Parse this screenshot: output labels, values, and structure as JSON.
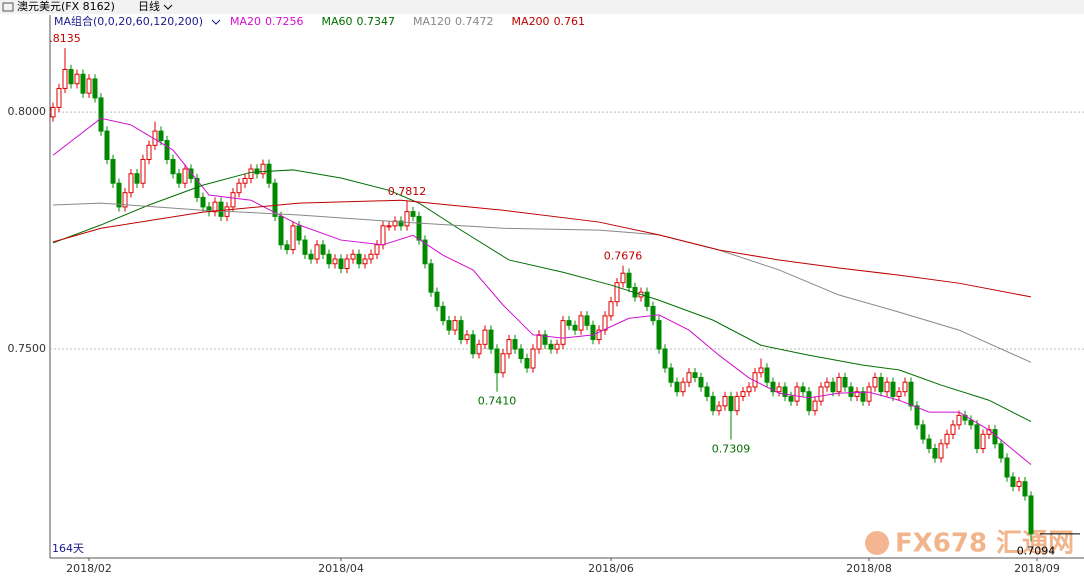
{
  "header": {
    "title": "澳元美元(FX 8162)",
    "period": "日线"
  },
  "footer": {
    "days": "164天",
    "watermark": "FX678 汇通网"
  },
  "chart_data": {
    "type": "candlestick",
    "legend_title": "MA组合(0,0,20,60,120,200)",
    "up_color": "#e00000",
    "down_color": "#008a00",
    "ylim": [
      0.7059,
      0.8205
    ],
    "yticks": [
      {
        "value": 0.8,
        "label": "0.8000"
      },
      {
        "value": 0.75,
        "label": "0.7500"
      }
    ],
    "grid": true,
    "xticks": [
      {
        "value": 6,
        "label": "2018/02"
      },
      {
        "value": 48,
        "label": "2018/04"
      },
      {
        "value": 93,
        "label": "2018/06"
      },
      {
        "value": 136,
        "label": "2018/08"
      },
      {
        "value": 164,
        "label": "2018/09"
      }
    ],
    "open": [
      0.799,
      0.801,
      0.805,
      0.809,
      0.806,
      0.808,
      0.804,
      0.807,
      0.803,
      0.796,
      0.79,
      0.785,
      0.78,
      0.783,
      0.787,
      0.785,
      0.79,
      0.793,
      0.796,
      0.794,
      0.79,
      0.787,
      0.785,
      0.788,
      0.786,
      0.782,
      0.78,
      0.779,
      0.781,
      0.778,
      0.78,
      0.783,
      0.785,
      0.786,
      0.788,
      0.787,
      0.789,
      0.785,
      0.778,
      0.772,
      0.771,
      0.776,
      0.773,
      0.77,
      0.769,
      0.772,
      0.77,
      0.768,
      0.769,
      0.767,
      0.769,
      0.77,
      0.768,
      0.769,
      0.77,
      0.772,
      0.776,
      0.776,
      0.777,
      0.776,
      0.779,
      0.778,
      0.773,
      0.768,
      0.762,
      0.759,
      0.756,
      0.754,
      0.756,
      0.752,
      0.753,
      0.749,
      0.751,
      0.754,
      0.75,
      0.745,
      0.749,
      0.752,
      0.75,
      0.748,
      0.746,
      0.75,
      0.753,
      0.751,
      0.75,
      0.751,
      0.756,
      0.755,
      0.754,
      0.757,
      0.755,
      0.752,
      0.754,
      0.757,
      0.76,
      0.764,
      0.766,
      0.763,
      0.761,
      0.762,
      0.759,
      0.756,
      0.75,
      0.746,
      0.743,
      0.741,
      0.743,
      0.745,
      0.744,
      0.742,
      0.74,
      0.737,
      0.738,
      0.74,
      0.737,
      0.74,
      0.741,
      0.742,
      0.745,
      0.746,
      0.743,
      0.741,
      0.742,
      0.74,
      0.739,
      0.742,
      0.741,
      0.737,
      0.739,
      0.742,
      0.743,
      0.741,
      0.744,
      0.742,
      0.74,
      0.741,
      0.739,
      0.742,
      0.744,
      0.741,
      0.743,
      0.74,
      0.741,
      0.743,
      0.738,
      0.734,
      0.731,
      0.729,
      0.727,
      0.73,
      0.732,
      0.734,
      0.736,
      0.735,
      0.734,
      0.729,
      0.732,
      0.733,
      0.73,
      0.727,
      0.723,
      0.721,
      0.722,
      0.719
    ],
    "high": [
      0.802,
      0.806,
      0.8135,
      0.81,
      0.809,
      0.809,
      0.808,
      0.808,
      0.804,
      0.797,
      0.791,
      0.786,
      0.784,
      0.788,
      0.788,
      0.791,
      0.794,
      0.798,
      0.797,
      0.795,
      0.791,
      0.788,
      0.789,
      0.789,
      0.787,
      0.783,
      0.781,
      0.782,
      0.782,
      0.781,
      0.784,
      0.786,
      0.787,
      0.789,
      0.789,
      0.79,
      0.79,
      0.786,
      0.779,
      0.773,
      0.777,
      0.777,
      0.774,
      0.771,
      0.773,
      0.773,
      0.771,
      0.77,
      0.77,
      0.77,
      0.771,
      0.771,
      0.77,
      0.771,
      0.773,
      0.777,
      0.777,
      0.778,
      0.778,
      0.7812,
      0.78,
      0.779,
      0.774,
      0.769,
      0.763,
      0.76,
      0.757,
      0.757,
      0.757,
      0.754,
      0.754,
      0.752,
      0.755,
      0.755,
      0.751,
      0.75,
      0.753,
      0.753,
      0.751,
      0.749,
      0.751,
      0.754,
      0.754,
      0.752,
      0.752,
      0.757,
      0.757,
      0.756,
      0.758,
      0.758,
      0.756,
      0.755,
      0.758,
      0.761,
      0.765,
      0.7676,
      0.767,
      0.764,
      0.763,
      0.763,
      0.76,
      0.757,
      0.751,
      0.747,
      0.744,
      0.744,
      0.746,
      0.746,
      0.745,
      0.743,
      0.741,
      0.739,
      0.741,
      0.741,
      0.741,
      0.742,
      0.743,
      0.746,
      0.748,
      0.747,
      0.744,
      0.743,
      0.743,
      0.741,
      0.743,
      0.743,
      0.742,
      0.74,
      0.743,
      0.744,
      0.744,
      0.745,
      0.745,
      0.743,
      0.742,
      0.742,
      0.743,
      0.745,
      0.745,
      0.744,
      0.744,
      0.742,
      0.744,
      0.744,
      0.739,
      0.735,
      0.732,
      0.73,
      0.731,
      0.733,
      0.735,
      0.737,
      0.737,
      0.736,
      0.735,
      0.733,
      0.734,
      0.734,
      0.731,
      0.728,
      0.724,
      0.723,
      0.723,
      0.72
    ],
    "low": [
      0.798,
      0.8,
      0.804,
      0.805,
      0.805,
      0.803,
      0.803,
      0.802,
      0.795,
      0.789,
      0.784,
      0.779,
      0.779,
      0.782,
      0.784,
      0.784,
      0.789,
      0.792,
      0.793,
      0.789,
      0.786,
      0.784,
      0.784,
      0.785,
      0.781,
      0.779,
      0.778,
      0.778,
      0.777,
      0.777,
      0.779,
      0.782,
      0.784,
      0.785,
      0.786,
      0.786,
      0.784,
      0.777,
      0.771,
      0.77,
      0.77,
      0.772,
      0.769,
      0.768,
      0.768,
      0.769,
      0.767,
      0.767,
      0.766,
      0.766,
      0.768,
      0.767,
      0.767,
      0.768,
      0.769,
      0.771,
      0.775,
      0.775,
      0.775,
      0.775,
      0.777,
      0.772,
      0.767,
      0.761,
      0.758,
      0.755,
      0.753,
      0.753,
      0.751,
      0.751,
      0.748,
      0.748,
      0.75,
      0.749,
      0.741,
      0.744,
      0.748,
      0.749,
      0.747,
      0.745,
      0.745,
      0.749,
      0.75,
      0.749,
      0.749,
      0.75,
      0.754,
      0.753,
      0.753,
      0.754,
      0.751,
      0.751,
      0.753,
      0.756,
      0.759,
      0.763,
      0.762,
      0.76,
      0.76,
      0.758,
      0.755,
      0.749,
      0.745,
      0.742,
      0.74,
      0.74,
      0.742,
      0.743,
      0.741,
      0.739,
      0.736,
      0.736,
      0.737,
      0.7309,
      0.736,
      0.739,
      0.74,
      0.741,
      0.744,
      0.742,
      0.74,
      0.74,
      0.739,
      0.738,
      0.738,
      0.74,
      0.736,
      0.736,
      0.738,
      0.741,
      0.74,
      0.74,
      0.741,
      0.739,
      0.739,
      0.738,
      0.738,
      0.741,
      0.74,
      0.74,
      0.739,
      0.739,
      0.74,
      0.737,
      0.733,
      0.73,
      0.728,
      0.726,
      0.726,
      0.729,
      0.731,
      0.733,
      0.734,
      0.733,
      0.728,
      0.728,
      0.731,
      0.729,
      0.726,
      0.722,
      0.72,
      0.72,
      0.718,
      0.7094
    ],
    "close": [
      0.801,
      0.805,
      0.809,
      0.806,
      0.808,
      0.804,
      0.807,
      0.803,
      0.796,
      0.79,
      0.785,
      0.78,
      0.783,
      0.787,
      0.785,
      0.79,
      0.793,
      0.796,
      0.794,
      0.79,
      0.787,
      0.785,
      0.788,
      0.786,
      0.782,
      0.78,
      0.779,
      0.781,
      0.778,
      0.78,
      0.783,
      0.785,
      0.786,
      0.788,
      0.787,
      0.789,
      0.785,
      0.778,
      0.772,
      0.771,
      0.776,
      0.773,
      0.77,
      0.769,
      0.772,
      0.77,
      0.768,
      0.769,
      0.767,
      0.769,
      0.77,
      0.768,
      0.769,
      0.77,
      0.772,
      0.776,
      0.776,
      0.777,
      0.776,
      0.779,
      0.778,
      0.773,
      0.768,
      0.762,
      0.759,
      0.756,
      0.754,
      0.756,
      0.752,
      0.753,
      0.749,
      0.751,
      0.754,
      0.75,
      0.745,
      0.749,
      0.752,
      0.75,
      0.748,
      0.746,
      0.75,
      0.753,
      0.751,
      0.75,
      0.751,
      0.756,
      0.755,
      0.754,
      0.757,
      0.755,
      0.752,
      0.754,
      0.757,
      0.76,
      0.764,
      0.766,
      0.763,
      0.761,
      0.762,
      0.759,
      0.756,
      0.75,
      0.746,
      0.743,
      0.741,
      0.743,
      0.745,
      0.744,
      0.742,
      0.74,
      0.737,
      0.738,
      0.74,
      0.737,
      0.74,
      0.741,
      0.742,
      0.745,
      0.746,
      0.743,
      0.741,
      0.742,
      0.74,
      0.739,
      0.742,
      0.741,
      0.737,
      0.739,
      0.742,
      0.743,
      0.741,
      0.744,
      0.742,
      0.74,
      0.741,
      0.739,
      0.742,
      0.744,
      0.741,
      0.743,
      0.74,
      0.741,
      0.743,
      0.738,
      0.734,
      0.731,
      0.729,
      0.727,
      0.73,
      0.732,
      0.734,
      0.736,
      0.735,
      0.734,
      0.729,
      0.732,
      0.733,
      0.73,
      0.727,
      0.723,
      0.721,
      0.722,
      0.719,
      0.711
    ],
    "annotations": [
      {
        "index": 2,
        "of": "high",
        "label": ".8135"
      },
      {
        "index": 59,
        "of": "high"
      },
      {
        "index": 95,
        "of": "high"
      },
      {
        "index": 74,
        "of": "low",
        "label": "0.7410"
      },
      {
        "index": 113,
        "of": "low"
      },
      {
        "index": 163,
        "of": "low"
      }
    ],
    "series": [
      {
        "name": "MA20",
        "color": "#d010d0",
        "x": [
          0,
          8,
          13,
          20,
          26,
          33,
          41,
          48,
          55,
          60,
          65,
          70,
          75,
          80,
          85,
          90,
          96,
          101,
          106,
          111,
          116,
          121,
          126,
          131,
          136,
          141,
          146,
          151,
          156,
          163
        ],
        "values": [
          0.7909,
          0.7987,
          0.7973,
          0.792,
          0.7825,
          0.7814,
          0.7762,
          0.773,
          0.772,
          0.774,
          0.7698,
          0.7667,
          0.7593,
          0.753,
          0.7523,
          0.753,
          0.7565,
          0.7572,
          0.754,
          0.7487,
          0.7439,
          0.7407,
          0.7397,
          0.7407,
          0.7409,
          0.7392,
          0.7367,
          0.7367,
          0.7329,
          0.7256
        ]
      },
      {
        "name": "MA60",
        "color": "#006e00",
        "x": [
          0,
          8,
          16,
          25,
          33,
          40,
          48,
          56,
          61,
          68,
          76,
          85,
          93,
          101,
          110,
          118,
          126,
          135,
          141,
          148,
          156,
          163
        ],
        "values": [
          0.7724,
          0.7762,
          0.7804,
          0.7846,
          0.7873,
          0.7878,
          0.7861,
          0.7835,
          0.7808,
          0.7751,
          0.7688,
          0.7662,
          0.7635,
          0.7603,
          0.7561,
          0.7508,
          0.7487,
          0.7466,
          0.7456,
          0.7424,
          0.7392,
          0.7347
        ]
      },
      {
        "name": "MA120",
        "color": "#888888",
        "x": [
          0,
          8,
          25,
          41,
          58,
          75,
          91,
          101,
          111,
          121,
          131,
          141,
          151,
          163
        ],
        "values": [
          0.7804,
          0.7808,
          0.7793,
          0.7783,
          0.7768,
          0.7755,
          0.7751,
          0.7741,
          0.7709,
          0.7667,
          0.7614,
          0.7578,
          0.754,
          0.7472
        ]
      },
      {
        "name": "MA200",
        "color": "#c00000",
        "x": [
          0,
          8,
          25,
          41,
          58,
          75,
          91,
          101,
          111,
          121,
          131,
          141,
          151,
          163
        ],
        "values": [
          0.7726,
          0.7755,
          0.7789,
          0.7808,
          0.7814,
          0.7793,
          0.7768,
          0.7741,
          0.7709,
          0.7688,
          0.7671,
          0.7656,
          0.7639,
          0.761
        ]
      }
    ]
  }
}
